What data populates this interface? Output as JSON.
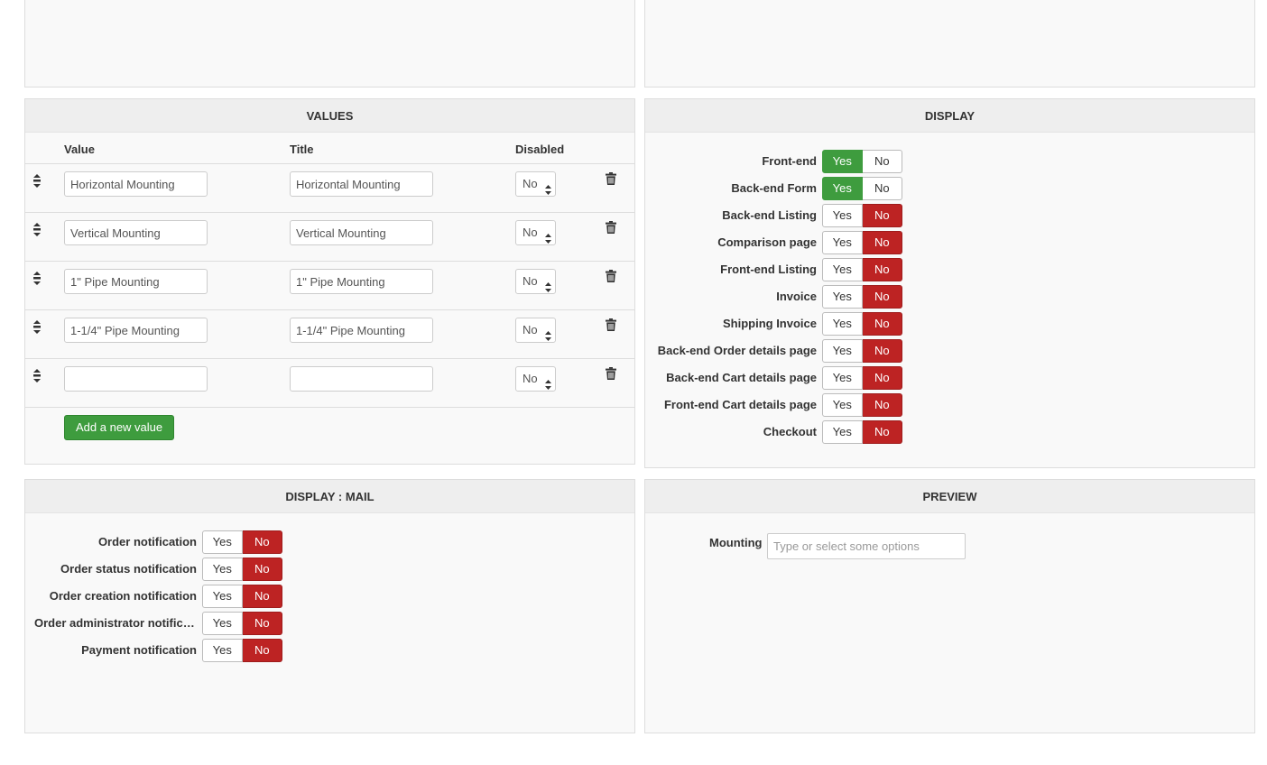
{
  "values_panel": {
    "title": "VALUES",
    "col_value": "Value",
    "col_title": "Title",
    "col_disabled": "Disabled",
    "rows": [
      {
        "value": "Horizontal Mounting",
        "title": "Horizontal Mounting",
        "disabled": "No"
      },
      {
        "value": "Vertical Mounting",
        "title": "Vertical Mounting",
        "disabled": "No"
      },
      {
        "value": "1\" Pipe Mounting",
        "title": "1\" Pipe Mounting",
        "disabled": "No"
      },
      {
        "value": "1-1/4\" Pipe Mounting",
        "title": "1-1/4\" Pipe Mounting",
        "disabled": "No"
      },
      {
        "value": "",
        "title": "",
        "disabled": "No"
      }
    ],
    "add_button": "Add a new value",
    "icons": {
      "drag": "drag-handle-icon",
      "delete": "trash-icon",
      "select": "chevron-updown-icon"
    }
  },
  "display_panel": {
    "title": "DISPLAY",
    "yes_label": "Yes",
    "no_label": "No",
    "items": [
      {
        "label": "Front-end",
        "state": "yes"
      },
      {
        "label": "Back-end Form",
        "state": "yes"
      },
      {
        "label": "Back-end Listing",
        "state": "no"
      },
      {
        "label": "Comparison page",
        "state": "no"
      },
      {
        "label": "Front-end Listing",
        "state": "no"
      },
      {
        "label": "Invoice",
        "state": "no"
      },
      {
        "label": "Shipping Invoice",
        "state": "no"
      },
      {
        "label": "Back-end Order details page",
        "state": "no"
      },
      {
        "label": "Back-end Cart details page",
        "state": "no"
      },
      {
        "label": "Front-end Cart details page",
        "state": "no"
      },
      {
        "label": "Checkout",
        "state": "no"
      }
    ]
  },
  "mail_panel": {
    "title": "DISPLAY : MAIL",
    "yes_label": "Yes",
    "no_label": "No",
    "items": [
      {
        "label": "Order notification",
        "state": "no"
      },
      {
        "label": "Order status notification",
        "state": "no"
      },
      {
        "label": "Order creation notification",
        "state": "no"
      },
      {
        "label": "Order administrator notification",
        "state": "no"
      },
      {
        "label": "Payment notification",
        "state": "no"
      }
    ]
  },
  "preview_panel": {
    "title": "PREVIEW",
    "field_label": "Mounting",
    "placeholder": "Type or select some options"
  },
  "colors": {
    "yes_active": "#3e9c3e",
    "no_active": "#bd2323",
    "panel_bg": "#f9f9f9",
    "header_bg": "#eeeeee"
  }
}
